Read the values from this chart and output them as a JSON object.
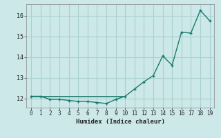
{
  "xlabel": "Humidex (Indice chaleur)",
  "x_values": [
    0,
    1,
    2,
    3,
    4,
    5,
    6,
    7,
    8,
    9,
    10,
    11,
    12,
    13,
    14,
    15,
    16,
    17,
    18,
    19
  ],
  "y_main": [
    12.1,
    12.1,
    11.95,
    11.95,
    11.9,
    11.85,
    11.85,
    11.8,
    11.75,
    11.95,
    12.1,
    12.45,
    12.8,
    13.1,
    14.05,
    13.6,
    15.2,
    15.15,
    16.25,
    15.75
  ],
  "y_flat_x": [
    0,
    1,
    2,
    3,
    4,
    5,
    6,
    7,
    8,
    9,
    10
  ],
  "y_flat_y": [
    12.1,
    12.1,
    12.1,
    12.1,
    12.1,
    12.1,
    12.1,
    12.1,
    12.1,
    12.1,
    12.1
  ],
  "line_color": "#1a7a6e",
  "bg_color": "#cce8e8",
  "grid_color": "#aad0d0",
  "xlim": [
    -0.5,
    19.5
  ],
  "ylim": [
    11.55,
    16.55
  ],
  "yticks": [
    12,
    13,
    14,
    15,
    16
  ],
  "xticks": [
    0,
    1,
    2,
    3,
    4,
    5,
    6,
    7,
    8,
    9,
    10,
    11,
    12,
    13,
    14,
    15,
    16,
    17,
    18,
    19
  ]
}
